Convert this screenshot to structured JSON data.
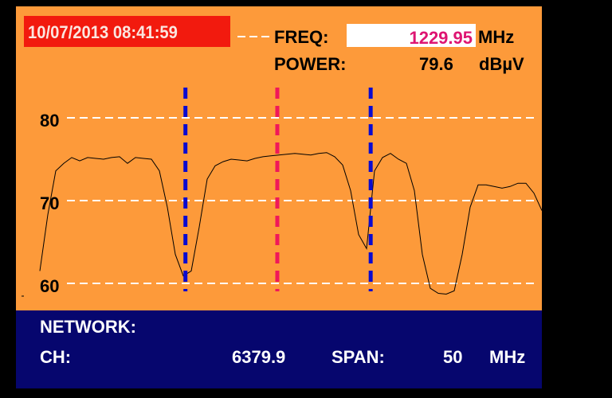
{
  "header": {
    "datetime": "10/07/2013 08:41:59",
    "freq_label": "FREQ:",
    "freq_value": "1229.95",
    "freq_unit": "MHz",
    "power_label": "POWER:",
    "power_value": "79.6",
    "power_unit": "dBµV"
  },
  "footer": {
    "network_label": "NETWORK:",
    "ch_label": "CH:",
    "ch_value": "6379.9",
    "span_label": "SPAN:",
    "span_value": "50",
    "span_unit": "MHz"
  },
  "chart_data": {
    "type": "line",
    "y_ticks": [
      "80",
      "70",
      "60"
    ],
    "ylim": [
      58,
      82
    ],
    "grid": "horizontal dashed",
    "trace_dbuv": [
      61.5,
      68.3,
      73.6,
      74.5,
      75.2,
      74.8,
      75.2,
      75.1,
      75.0,
      75.2,
      75.3,
      74.5,
      75.2,
      75.1,
      75.0,
      73.6,
      69.2,
      63.5,
      60.9,
      61.5,
      66.8,
      72.6,
      74.2,
      74.7,
      75.0,
      74.9,
      74.8,
      75.1,
      75.3,
      75.4,
      75.5,
      75.6,
      75.7,
      75.6,
      75.5,
      75.7,
      75.8,
      75.3,
      74.3,
      71.2,
      65.9,
      64.2,
      73.6,
      75.2,
      75.7,
      75.0,
      74.5,
      71.2,
      63.5,
      59.4,
      58.8,
      58.7,
      59.1,
      63.5,
      69.2,
      71.9,
      71.9,
      71.7,
      71.5,
      71.7,
      72.1,
      72.1,
      70.9,
      68.8
    ],
    "markers": [
      {
        "color": "#0a0ad0",
        "position_pct": 29
      },
      {
        "color": "#f0185a",
        "position_pct": 47.3
      },
      {
        "color": "#0a0ad0",
        "position_pct": 65.9
      }
    ],
    "colors": {
      "background": "#fd9a3a",
      "trace": "#000000",
      "grid": "#ffffff"
    }
  }
}
